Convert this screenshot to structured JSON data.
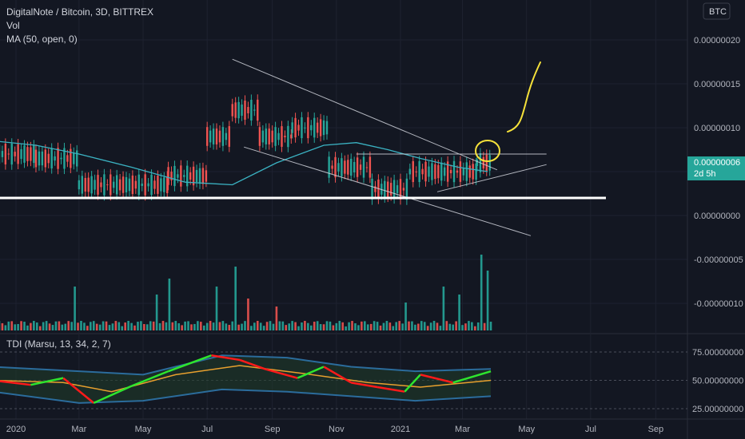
{
  "header": {
    "title": "DigitalNote / Bitcoin, 3D, BITTREX",
    "vol_label": "Vol",
    "ma_label": "MA (50, open, 0)",
    "tdi_label": "TDI (Marsu, 13, 34, 2, 7)",
    "currency_badge": "BTC"
  },
  "price_badge": {
    "value": "0.00000006",
    "countdown": "2d 5h"
  },
  "colors": {
    "background": "#131722",
    "up": "#26a69a",
    "down": "#ef5350",
    "ma": "#3bb3c3",
    "price_badge": "#26a69a",
    "annotation_yellow": "#f5e13a",
    "trendline": "#d1d4dc",
    "support": "#ffffff",
    "tdi_green": "#2ee62e",
    "tdi_red": "#ff1a1a",
    "tdi_mid": "#e8a02e",
    "tdi_band": "#2b6c9c"
  },
  "chart_data": [
    {
      "type": "candlestick",
      "title": "DigitalNote / Bitcoin, 3D, BITTREX",
      "xlabel": "",
      "ylabel": "",
      "x_ticks": [
        "2020",
        "Mar",
        "May",
        "Jul",
        "Sep",
        "Nov",
        "2021",
        "Mar",
        "May",
        "Jul",
        "Sep"
      ],
      "y_ticks": [
        "0.00000020",
        "0.00000015",
        "0.00000010",
        "0.00000005",
        "0.00000000",
        "-0.00000005",
        "-0.00000010"
      ],
      "ylim": [
        -1.4e-07,
        2.2e-07
      ],
      "last_price": 6e-08,
      "segments": [
        {
          "from": "2019-12-10",
          "to": "2020-01-20",
          "level": 7e-08
        },
        {
          "from": "2020-01-20",
          "to": "2020-03-01",
          "level": 6.5e-08
        },
        {
          "from": "2020-03-01",
          "to": "2020-05-25",
          "level": 3.5e-08
        },
        {
          "from": "2020-05-25",
          "to": "2020-07-01",
          "level": 4.5e-08
        },
        {
          "from": "2020-07-01",
          "to": "2020-07-25",
          "level": 9e-08
        },
        {
          "from": "2020-07-25",
          "to": "2020-08-20",
          "level": 1.2e-07
        },
        {
          "from": "2020-08-20",
          "to": "2020-09-20",
          "level": 9e-08
        },
        {
          "from": "2020-09-20",
          "to": "2020-10-25",
          "level": 1e-07
        },
        {
          "from": "2020-10-25",
          "to": "2020-12-05",
          "level": 5.5e-08
        },
        {
          "from": "2020-12-05",
          "to": "2021-01-10",
          "level": 3e-08
        },
        {
          "from": "2021-01-10",
          "to": "2021-03-15",
          "level": 5e-08
        },
        {
          "from": "2021-03-15",
          "to": "2021-03-30",
          "level": 6e-08
        }
      ],
      "ma": [
        {
          "date": "2019-12-10",
          "value": 8.5e-08
        },
        {
          "date": "2020-01-20",
          "value": 8e-08
        },
        {
          "date": "2020-03-01",
          "value": 7e-08
        },
        {
          "date": "2020-04-20",
          "value": 5.5e-08
        },
        {
          "date": "2020-06-10",
          "value": 3.8e-08
        },
        {
          "date": "2020-07-25",
          "value": 3.5e-08
        },
        {
          "date": "2020-09-05",
          "value": 6e-08
        },
        {
          "date": "2020-10-20",
          "value": 8e-08
        },
        {
          "date": "2020-11-20",
          "value": 8.3e-08
        },
        {
          "date": "2020-12-20",
          "value": 7.5e-08
        },
        {
          "date": "2021-01-20",
          "value": 6.5e-08
        },
        {
          "date": "2021-02-25",
          "value": 5.5e-08
        },
        {
          "date": "2021-03-25",
          "value": 5e-08
        }
      ],
      "drawings": [
        {
          "type": "trend",
          "from": {
            "date": "2020-07-25",
            "value": 1.78e-07
          },
          "to": {
            "date": "2021-04-03",
            "value": 5.2e-08
          }
        },
        {
          "type": "trend",
          "from": {
            "date": "2020-08-05",
            "value": 7.8e-08
          },
          "to": {
            "date": "2021-05-05",
            "value": -2.3e-08
          }
        },
        {
          "type": "trend",
          "from": {
            "date": "2021-02-05",
            "value": 2.7e-08
          },
          "to": {
            "date": "2021-05-20",
            "value": 5.8e-08
          }
        },
        {
          "type": "horizontal",
          "from": {
            "date": "2020-11-20",
            "value": 7e-08
          },
          "to": {
            "date": "2021-05-20",
            "value": 7e-08
          }
        },
        {
          "type": "support",
          "value": 2e-08
        }
      ],
      "volume": {
        "unit": "relative",
        "spikes": [
          {
            "date": "2020-02-25",
            "value": 0.55
          },
          {
            "date": "2020-05-15",
            "value": 0.45
          },
          {
            "date": "2020-05-25",
            "value": 0.65
          },
          {
            "date": "2020-07-10",
            "value": 0.55
          },
          {
            "date": "2020-07-28",
            "value": 0.8
          },
          {
            "date": "2020-08-10",
            "value": 0.4
          },
          {
            "date": "2020-09-05",
            "value": 0.3
          },
          {
            "date": "2021-01-05",
            "value": 0.35
          },
          {
            "date": "2021-02-12",
            "value": 0.55
          },
          {
            "date": "2021-02-25",
            "value": 0.45
          },
          {
            "date": "2021-03-20",
            "value": 0.95
          },
          {
            "date": "2021-03-25",
            "value": 0.75
          }
        ]
      }
    },
    {
      "type": "line",
      "title": "TDI (Marsu, 13, 34, 2, 7)",
      "y_ticks": [
        "75.00000000",
        "50.00000000",
        "25.00000000"
      ],
      "ylim": [
        20,
        85
      ],
      "series": [
        {
          "values": [
            {
              "date": "2019-12-10",
              "value": 50
            },
            {
              "date": "2020-01-15",
              "value": 46
            },
            {
              "date": "2020-02-15",
              "value": 52
            },
            {
              "date": "2020-03-15",
              "value": 30
            },
            {
              "date": "2020-04-20",
              "value": 45
            },
            {
              "date": "2020-05-25",
              "value": 58
            },
            {
              "date": "2020-07-05",
              "value": 72
            },
            {
              "date": "2020-08-01",
              "value": 68
            },
            {
              "date": "2020-08-25",
              "value": 60
            },
            {
              "date": "2020-09-25",
              "value": 52
            },
            {
              "date": "2020-10-20",
              "value": 62
            },
            {
              "date": "2020-11-15",
              "value": 48
            },
            {
              "date": "2020-12-10",
              "value": 44
            },
            {
              "date": "2021-01-05",
              "value": 40
            },
            {
              "date": "2021-01-20",
              "value": 55
            },
            {
              "date": "2021-02-20",
              "value": 48
            },
            {
              "date": "2021-03-28",
              "value": 58
            }
          ]
        },
        {
          "values": [
            {
              "date": "2019-12-10",
              "value": 50
            },
            {
              "date": "2020-02-15",
              "value": 48
            },
            {
              "date": "2020-04-01",
              "value": 40
            },
            {
              "date": "2020-06-01",
              "value": 55
            },
            {
              "date": "2020-08-01",
              "value": 63
            },
            {
              "date": "2020-10-01",
              "value": 56
            },
            {
              "date": "2020-12-01",
              "value": 48
            },
            {
              "date": "2021-01-20",
              "value": 44
            },
            {
              "date": "2021-03-28",
              "value": 50
            }
          ]
        },
        {
          "values": [
            {
              "date": "2019-12-10",
              "value": 62
            },
            {
              "date": "2020-03-01",
              "value": 58
            },
            {
              "date": "2020-05-01",
              "value": 55
            },
            {
              "date": "2020-07-15",
              "value": 72
            },
            {
              "date": "2020-09-15",
              "value": 70
            },
            {
              "date": "2020-11-15",
              "value": 62
            },
            {
              "date": "2021-01-15",
              "value": 58
            },
            {
              "date": "2021-03-28",
              "value": 60
            }
          ]
        },
        {
          "values": [
            {
              "date": "2019-12-10",
              "value": 40
            },
            {
              "date": "2020-03-01",
              "value": 30
            },
            {
              "date": "2020-05-01",
              "value": 32
            },
            {
              "date": "2020-07-15",
              "value": 42
            },
            {
              "date": "2020-09-15",
              "value": 40
            },
            {
              "date": "2020-11-15",
              "value": 36
            },
            {
              "date": "2021-01-15",
              "value": 32
            },
            {
              "date": "2021-03-28",
              "value": 36
            }
          ]
        }
      ]
    }
  ]
}
